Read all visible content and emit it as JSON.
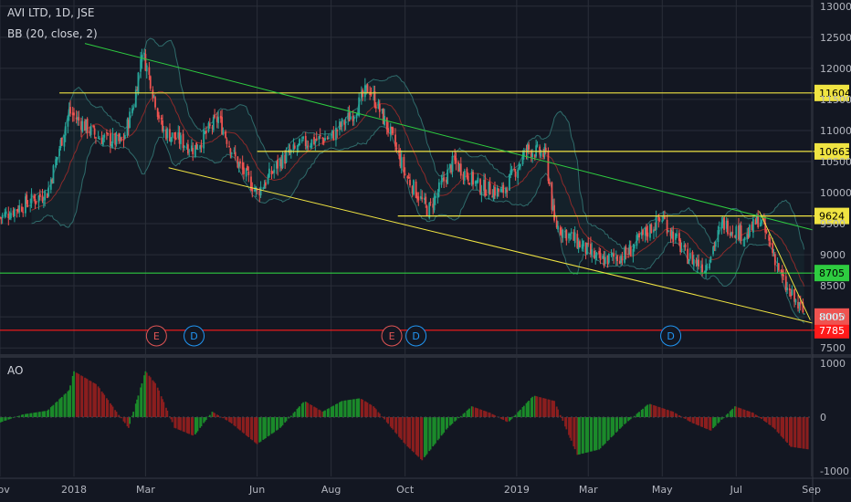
{
  "header": {
    "symbol_line": "AVI LTD, 1D, JSE",
    "indicator_line": "BB (20, close, 2)",
    "ao_label": "AO"
  },
  "colors": {
    "background": "#131722",
    "grid": "#2a2e39",
    "up": "#26a69a",
    "down": "#ef5350",
    "yellow": "#f0e442",
    "green": "#2ecc40",
    "red": "#ff1a1a",
    "bb": "#2f6b6b",
    "ao_up": "#1b8a2a",
    "ao_down": "#8b1e1e"
  },
  "chart_data": [
    {
      "type": "candlestick",
      "title": "AVI LTD, 1D, JSE",
      "ylim": [
        7400,
        13100
      ],
      "y_ticks": [
        7500,
        8000,
        8500,
        9000,
        9500,
        10000,
        10500,
        11000,
        11500,
        12000,
        12500,
        13000
      ],
      "x_ticks": [
        "Nov",
        "2018",
        "Mar",
        "Jun",
        "Aug",
        "Oct",
        "2019",
        "Mar",
        "May",
        "Jul",
        "Sep"
      ],
      "x_ticks_date": [
        "2017-11-01",
        "2018-01-01",
        "2018-03-01",
        "2018-06-01",
        "2018-08-01",
        "2018-10-01",
        "2019-01-01",
        "2019-03-01",
        "2019-05-01",
        "2019-07-01",
        "2019-09-01"
      ],
      "xlim": [
        "2017-11-01",
        "2019-09-02"
      ],
      "close_path": [
        [
          "2017-11-01",
          9600
        ],
        [
          "2017-11-20",
          9800
        ],
        [
          "2017-12-10",
          10000
        ],
        [
          "2017-12-28",
          11300
        ],
        [
          "2018-01-20",
          10900
        ],
        [
          "2018-02-10",
          10800
        ],
        [
          "2018-02-20",
          11500
        ],
        [
          "2018-02-26",
          12300
        ],
        [
          "2018-03-05",
          11800
        ],
        [
          "2018-03-15",
          11000
        ],
        [
          "2018-04-10",
          10700
        ],
        [
          "2018-04-30",
          11200
        ],
        [
          "2018-05-15",
          10500
        ],
        [
          "2018-06-01",
          10000
        ],
        [
          "2018-06-20",
          10500
        ],
        [
          "2018-07-10",
          10800
        ],
        [
          "2018-08-01",
          10900
        ],
        [
          "2018-08-20",
          11300
        ],
        [
          "2018-09-01",
          11700
        ],
        [
          "2018-09-20",
          10900
        ],
        [
          "2018-10-01",
          10300
        ],
        [
          "2018-10-20",
          9700
        ],
        [
          "2018-11-10",
          10500
        ],
        [
          "2018-12-01",
          10100
        ],
        [
          "2018-12-20",
          10000
        ],
        [
          "2019-01-10",
          10700
        ],
        [
          "2019-01-25",
          10600
        ],
        [
          "2019-02-01",
          9500
        ],
        [
          "2019-02-20",
          9200
        ],
        [
          "2019-03-10",
          8900
        ],
        [
          "2019-04-01",
          9000
        ],
        [
          "2019-04-20",
          9400
        ],
        [
          "2019-05-01",
          9600
        ],
        [
          "2019-05-20",
          9000
        ],
        [
          "2019-06-05",
          8800
        ],
        [
          "2019-06-20",
          9500
        ],
        [
          "2019-07-10",
          9300
        ],
        [
          "2019-07-20",
          9600
        ],
        [
          "2019-08-01",
          9000
        ],
        [
          "2019-08-10",
          8500
        ],
        [
          "2019-08-20",
          8200
        ],
        [
          "2019-08-28",
          8000
        ]
      ],
      "levels": [
        {
          "value": 11604,
          "label": "11604",
          "color": "#f0e442",
          "from": "2017-12-20"
        },
        {
          "value": 10663,
          "label": "10663",
          "color": "#f0e442",
          "from": "2018-06-01"
        },
        {
          "value": 9624,
          "label": "9624",
          "color": "#f0e442",
          "from": "2018-09-25"
        },
        {
          "value": 8705,
          "label": "8705",
          "color": "#2ecc40",
          "from": "2017-11-01"
        },
        {
          "value": 7785,
          "label": "7785",
          "color": "#ff1a1a",
          "from": "2017-11-01"
        }
      ],
      "last_price": {
        "value": 8005,
        "label": "8005"
      },
      "trendlines": [
        {
          "color": "#2ecc40",
          "from": [
            "2018-01-10",
            12400
          ],
          "to": [
            "2019-09-02",
            9400
          ]
        },
        {
          "color": "#f0e442",
          "from": [
            "2018-03-20",
            10400
          ],
          "to": [
            "2019-09-02",
            7900
          ]
        },
        {
          "color": "#f0e442",
          "from": [
            "2019-07-20",
            9700
          ],
          "to": [
            "2019-08-31",
            7950
          ]
        }
      ],
      "events": [
        {
          "label": "E",
          "date": "2018-03-10",
          "color": "#e05555"
        },
        {
          "label": "D",
          "date": "2018-04-10",
          "color": "#2196f3"
        },
        {
          "label": "E",
          "date": "2018-09-20",
          "color": "#e05555"
        },
        {
          "label": "D",
          "date": "2018-10-10",
          "color": "#2196f3"
        },
        {
          "label": "D",
          "date": "2019-05-08",
          "color": "#2196f3"
        }
      ]
    },
    {
      "type": "histogram",
      "title": "AO",
      "ylim": [
        -1100,
        1100
      ],
      "y_ticks": [
        1000,
        0,
        -1000
      ],
      "path": [
        [
          "2017-11-01",
          -100
        ],
        [
          "2017-11-20",
          50
        ],
        [
          "2017-12-10",
          120
        ],
        [
          "2017-12-28",
          500
        ],
        [
          "2018-01-01",
          850
        ],
        [
          "2018-01-20",
          600
        ],
        [
          "2018-02-05",
          100
        ],
        [
          "2018-02-15",
          -200
        ],
        [
          "2018-03-01",
          850
        ],
        [
          "2018-03-10",
          600
        ],
        [
          "2018-03-25",
          -200
        ],
        [
          "2018-04-10",
          -350
        ],
        [
          "2018-04-25",
          100
        ],
        [
          "2018-05-10",
          -100
        ],
        [
          "2018-06-01",
          -500
        ],
        [
          "2018-06-20",
          -200
        ],
        [
          "2018-07-10",
          300
        ],
        [
          "2018-07-25",
          100
        ],
        [
          "2018-08-10",
          300
        ],
        [
          "2018-08-25",
          350
        ],
        [
          "2018-09-05",
          200
        ],
        [
          "2018-10-01",
          -500
        ],
        [
          "2018-10-15",
          -800
        ],
        [
          "2018-11-05",
          -200
        ],
        [
          "2018-11-25",
          200
        ],
        [
          "2018-12-10",
          80
        ],
        [
          "2018-12-25",
          -100
        ],
        [
          "2019-01-15",
          400
        ],
        [
          "2019-02-01",
          300
        ],
        [
          "2019-02-20",
          -700
        ],
        [
          "2019-03-10",
          -600
        ],
        [
          "2019-03-30",
          -150
        ],
        [
          "2019-04-20",
          250
        ],
        [
          "2019-05-10",
          100
        ],
        [
          "2019-05-25",
          -100
        ],
        [
          "2019-06-10",
          -250
        ],
        [
          "2019-06-30",
          200
        ],
        [
          "2019-07-15",
          80
        ],
        [
          "2019-08-01",
          -200
        ],
        [
          "2019-08-15",
          -550
        ],
        [
          "2019-08-30",
          -600
        ]
      ]
    }
  ]
}
